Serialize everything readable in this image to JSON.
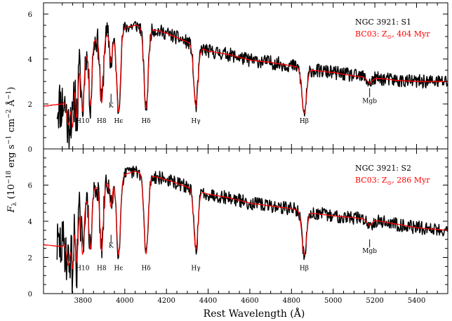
{
  "figure": {
    "xlabel": "Rest Wavelength (Å)",
    "ylabel_main": "F",
    "ylabel_sub": "λ",
    "ylabel_rest": " (10",
    "ylabel_exp1": "−18",
    "ylabel_unit1": " erg s",
    "ylabel_exp2": "−1",
    "ylabel_unit2": " cm",
    "ylabel_exp3": "−2",
    "ylabel_unit3": " Å",
    "ylabel_exp4": "−1",
    "ylabel_close": ")"
  },
  "chart_data": [
    {
      "type": "line",
      "panel": "top",
      "xlim": [
        3610,
        5550
      ],
      "ylim": [
        0,
        6.5
      ],
      "x_ticks": [
        3800,
        4000,
        4200,
        4400,
        4600,
        4800,
        5000,
        5200,
        5400
      ],
      "y_ticks": [
        0,
        2,
        4,
        6
      ],
      "legend": {
        "position": "top-right",
        "object": "NGC 3921: S1",
        "model_prefix": "BC03: Z",
        "model_sub": "⊙",
        "model_suffix": ", 404 Myr"
      },
      "series": [
        {
          "name": "NGC 3921: S1",
          "color": "#000000",
          "x_start": 3675,
          "x_end": 5550,
          "noise_amp": 0.14,
          "seed": 11
        },
        {
          "name": "BC03: Z⊙, 404 Myr",
          "color": "#ff0000",
          "x_start": 3610,
          "x_end": 5550,
          "noise_amp": 0.02,
          "seed": 5
        }
      ],
      "continuum": [
        [
          3610,
          1.9
        ],
        [
          3700,
          2.0
        ],
        [
          3750,
          2.8
        ],
        [
          3800,
          3.9
        ],
        [
          3850,
          4.8
        ],
        [
          3900,
          5.1
        ],
        [
          3950,
          5.0
        ],
        [
          4000,
          5.4
        ],
        [
          4050,
          5.5
        ],
        [
          4100,
          5.4
        ],
        [
          4200,
          5.15
        ],
        [
          4300,
          4.75
        ],
        [
          4400,
          4.35
        ],
        [
          4500,
          4.2
        ],
        [
          4600,
          3.95
        ],
        [
          4700,
          3.85
        ],
        [
          4800,
          3.7
        ],
        [
          4900,
          3.5
        ],
        [
          5000,
          3.4
        ],
        [
          5100,
          3.25
        ],
        [
          5200,
          3.15
        ],
        [
          5300,
          3.05
        ],
        [
          5400,
          3.0
        ],
        [
          5550,
          3.0
        ]
      ],
      "absorption_lines": [
        {
          "x": 3730,
          "depth": 1.4,
          "width": 9
        },
        {
          "x": 3750,
          "depth": 1.7,
          "width": 5
        },
        {
          "x": 3770,
          "depth": 1.9,
          "width": 5
        },
        {
          "x": 3798,
          "depth": 2.2,
          "width": 6
        },
        {
          "x": 3835,
          "depth": 2.6,
          "width": 7
        },
        {
          "x": 3889,
          "depth": 3.0,
          "width": 8
        },
        {
          "x": 3934,
          "depth": 1.2,
          "width": 6
        },
        {
          "x": 3970,
          "depth": 3.5,
          "width": 9
        },
        {
          "x": 4102,
          "depth": 3.6,
          "width": 10
        },
        {
          "x": 4341,
          "depth": 2.7,
          "width": 10
        },
        {
          "x": 4861,
          "depth": 2.0,
          "width": 11
        },
        {
          "x": 5175,
          "depth": 0.25,
          "width": 12
        }
      ],
      "annotations": [
        {
          "label": "H10",
          "x": 3798,
          "y": 1.15
        },
        {
          "label": "H8",
          "x": 3889,
          "y": 1.15
        },
        {
          "label": "Hϵ",
          "x": 3970,
          "y": 1.15
        },
        {
          "label": "Hδ",
          "x": 4102,
          "y": 1.15
        },
        {
          "label": "Hγ",
          "x": 4341,
          "y": 1.15
        },
        {
          "label": "Hβ",
          "x": 4861,
          "y": 1.15
        },
        {
          "label": "K",
          "x": 3934,
          "y": 1.85,
          "tick": [
            2.05,
            2.45
          ]
        },
        {
          "label": "Mgb",
          "x": 5175,
          "y": 2.05,
          "tick": [
            2.3,
            2.7
          ]
        }
      ]
    },
    {
      "type": "line",
      "panel": "bottom",
      "xlim": [
        3610,
        5550
      ],
      "ylim": [
        0,
        8
      ],
      "x_ticks": [
        3800,
        4000,
        4200,
        4400,
        4600,
        4800,
        5000,
        5200,
        5400
      ],
      "y_ticks": [
        0,
        2,
        4,
        6
      ],
      "legend": {
        "position": "top-right",
        "object": "NGC 3921: S2",
        "model_prefix": "BC03: Z",
        "model_sub": "⊙",
        "model_suffix": ", 286 Myr"
      },
      "series": [
        {
          "name": "NGC 3921: S2",
          "color": "#000000",
          "x_start": 3675,
          "x_end": 5550,
          "noise_amp": 0.17,
          "seed": 29
        },
        {
          "name": "BC03: Z⊙, 286 Myr",
          "color": "#ff0000",
          "x_start": 3610,
          "x_end": 5550,
          "noise_amp": 0.02,
          "seed": 7
        }
      ],
      "continuum": [
        [
          3610,
          2.7
        ],
        [
          3700,
          2.6
        ],
        [
          3750,
          3.6
        ],
        [
          3800,
          4.9
        ],
        [
          3850,
          5.8
        ],
        [
          3900,
          6.1
        ],
        [
          3950,
          6.2
        ],
        [
          4000,
          6.6
        ],
        [
          4050,
          6.75
        ],
        [
          4100,
          6.6
        ],
        [
          4200,
          6.3
        ],
        [
          4300,
          5.9
        ],
        [
          4400,
          5.5
        ],
        [
          4500,
          5.3
        ],
        [
          4600,
          5.0
        ],
        [
          4700,
          4.85
        ],
        [
          4800,
          4.7
        ],
        [
          4900,
          4.45
        ],
        [
          5000,
          4.3
        ],
        [
          5100,
          4.2
        ],
        [
          5200,
          4.05
        ],
        [
          5300,
          3.85
        ],
        [
          5400,
          3.65
        ],
        [
          5550,
          3.5
        ]
      ],
      "absorption_lines": [
        {
          "x": 3730,
          "depth": 1.6,
          "width": 9
        },
        {
          "x": 3750,
          "depth": 2.1,
          "width": 5
        },
        {
          "x": 3770,
          "depth": 2.4,
          "width": 5
        },
        {
          "x": 3798,
          "depth": 2.7,
          "width": 6
        },
        {
          "x": 3835,
          "depth": 3.1,
          "width": 7
        },
        {
          "x": 3889,
          "depth": 3.7,
          "width": 8
        },
        {
          "x": 3934,
          "depth": 1.4,
          "width": 6
        },
        {
          "x": 3970,
          "depth": 4.2,
          "width": 9
        },
        {
          "x": 4102,
          "depth": 4.4,
          "width": 10
        },
        {
          "x": 4341,
          "depth": 3.3,
          "width": 10
        },
        {
          "x": 4861,
          "depth": 2.4,
          "width": 11
        },
        {
          "x": 5175,
          "depth": 0.3,
          "width": 12
        }
      ],
      "annotations": [
        {
          "label": "H10",
          "x": 3798,
          "y": 1.3
        },
        {
          "label": "H8",
          "x": 3889,
          "y": 1.3
        },
        {
          "label": "Hϵ",
          "x": 3970,
          "y": 1.3
        },
        {
          "label": "Hδ",
          "x": 4102,
          "y": 1.3
        },
        {
          "label": "Hγ",
          "x": 4341,
          "y": 1.3
        },
        {
          "label": "Hβ",
          "x": 4861,
          "y": 1.3
        },
        {
          "label": "K",
          "x": 3934,
          "y": 2.55,
          "tick": [
            2.8,
            3.25
          ]
        },
        {
          "label": "Mgb",
          "x": 5175,
          "y": 2.25,
          "tick": [
            2.55,
            3.0
          ]
        }
      ]
    }
  ]
}
